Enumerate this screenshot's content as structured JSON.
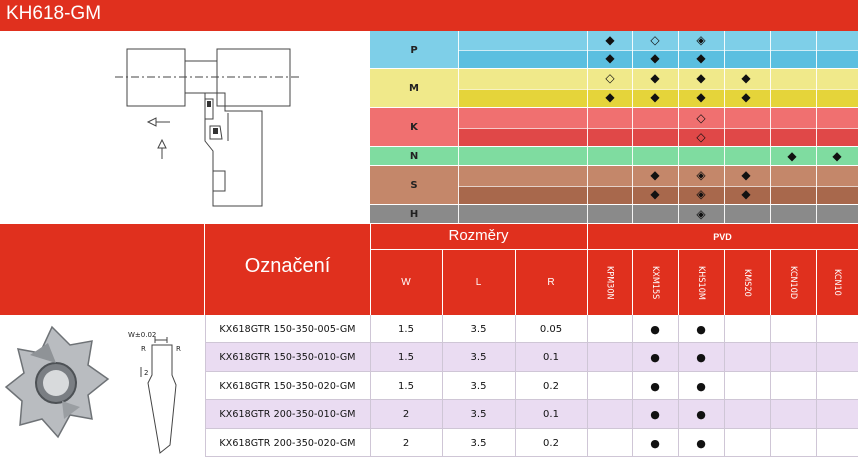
{
  "title": "KH618-GM",
  "materials": [
    {
      "label": "P",
      "color": "#7ecfe8",
      "color2": "#5bbfe0"
    },
    {
      "label": "M",
      "color": "#f0e98a",
      "color2": "#e5d43a"
    },
    {
      "label": "K",
      "color": "#f07070",
      "color2": "#e04848"
    },
    {
      "label": "N",
      "color": "#7fdca0"
    },
    {
      "label": "S",
      "color": "#c4876a",
      "color2": "#a8684c"
    },
    {
      "label": "H",
      "color": "#8a8a8a"
    }
  ],
  "header": {
    "designation_label": "Označení",
    "dimensions_label": "Rozměry",
    "coating_label": "PVD",
    "dim_cols": [
      "W",
      "L",
      "R"
    ],
    "grades": [
      "KPM30N",
      "KXM15S",
      "KHS10M",
      "KMS20",
      "KCN10D",
      "KCN10"
    ]
  },
  "drawing": {
    "tolerance_text": "W±0.02",
    "r_label": "R",
    "dim2": "2"
  },
  "rows": [
    {
      "code": "KX618GTR 150-350-005-GM",
      "W": "1.5",
      "L": "3.5",
      "R": "0.05"
    },
    {
      "code": "KX618GTR 150-350-010-GM",
      "W": "1.5",
      "L": "3.5",
      "R": "0.1"
    },
    {
      "code": "KX618GTR 150-350-020-GM",
      "W": "1.5",
      "L": "3.5",
      "R": "0.2"
    },
    {
      "code": "KX618GTR 200-350-010-GM",
      "W": "2",
      "L": "3.5",
      "R": "0.1"
    },
    {
      "code": "KX618GTR 200-350-020-GM",
      "W": "2",
      "L": "3.5",
      "R": "0.2"
    }
  ],
  "availability_symbol": "●",
  "symbols": {
    "filled": "◆",
    "hollow": "◇",
    "half": "◈"
  }
}
